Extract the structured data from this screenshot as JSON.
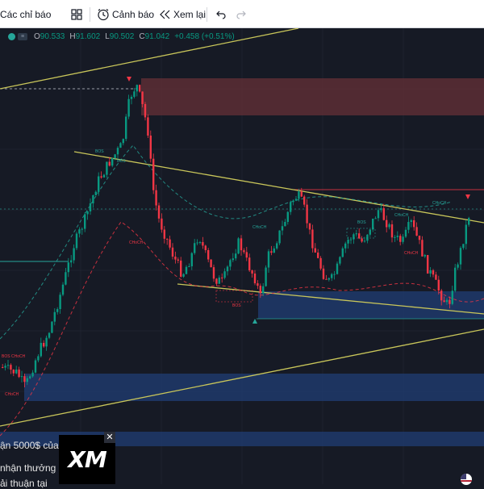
{
  "toolbar": {
    "indicators_label": "Các chỉ báo",
    "alert_label": "Cảnh báo",
    "replay_label": "Xem lại",
    "icons": [
      "indicators-icon",
      "layout-grid-icon",
      "alert-clock-icon",
      "replay-icon",
      "undo-icon",
      "redo-icon"
    ]
  },
  "ohlc": {
    "open_label": "O",
    "open": "90.533",
    "high_label": "H",
    "high": "91.602",
    "low_label": "L",
    "low": "90.502",
    "close_label": "C",
    "close": "91.042",
    "change": "+0.458 (+0.51%)"
  },
  "annotations": [
    {
      "text": "BOS"
    },
    {
      "text": "CHoCH"
    },
    {
      "text": "CHoCH"
    },
    {
      "text": "BOS"
    },
    {
      "text": "BOS"
    },
    {
      "text": "CHoCH"
    },
    {
      "text": "BOS"
    },
    {
      "text": "CHoCH"
    },
    {
      "text": "CHoCH"
    },
    {
      "text": "BOS"
    },
    {
      "text": "CHoCH"
    },
    {
      "text": "CHoCH"
    }
  ],
  "ad": {
    "line1": "ận 5000$ của",
    "line2": "nhận thưởng",
    "line3": "ải thuận tại",
    "logo": "XM",
    "close_symbol": "✕"
  },
  "colors": {
    "background": "#161a25",
    "candle_up": "#089981",
    "candle_down": "#f23645",
    "trendline": "#c9c65a",
    "supply_zone": "#5c2e35",
    "demand_zone": "#1e3a6b"
  }
}
